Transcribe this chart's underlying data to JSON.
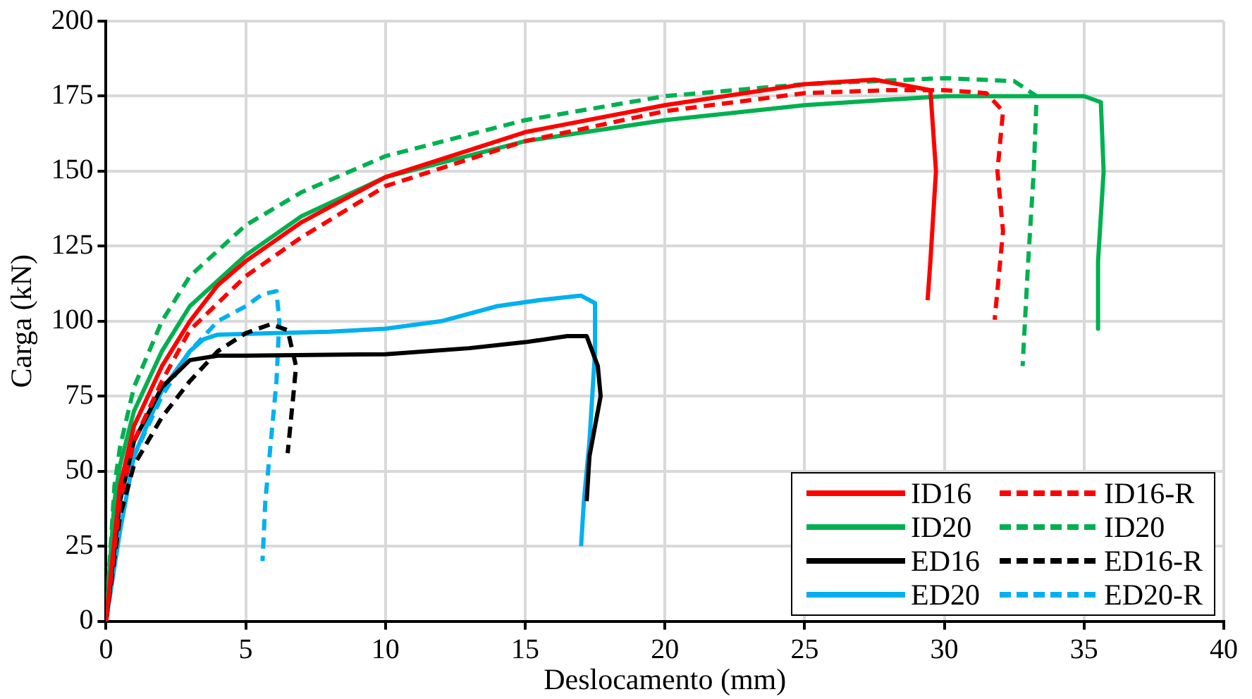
{
  "chart_data": {
    "type": "line",
    "xlabel": "Deslocamento (mm)",
    "ylabel": "Carga (kN)",
    "xlim": [
      0,
      40
    ],
    "xticks": [
      0,
      5,
      10,
      15,
      20,
      25,
      30,
      35,
      40
    ],
    "ylim": [
      0,
      200
    ],
    "yticks": [
      0,
      25,
      50,
      75,
      100,
      125,
      150,
      175,
      200
    ],
    "grid": true,
    "legend": "bottom right",
    "marker": "none",
    "series": [
      {
        "name": "ID16",
        "color": "#ff0000",
        "line_style": "solid",
        "x": [
          0,
          0.5,
          1,
          2,
          3,
          4,
          5,
          7,
          10,
          15,
          20,
          25,
          27.5,
          29.5,
          29.7,
          29.5,
          29.4
        ],
        "values": [
          0,
          45,
          65,
          85,
          100,
          112,
          120,
          133,
          148,
          163,
          172,
          179,
          180.5,
          177,
          150,
          120,
          107
        ]
      },
      {
        "name": "ID16-R",
        "color": "#ff0000",
        "line_style": "dashed",
        "x": [
          0,
          0.5,
          1,
          2,
          3,
          5,
          7,
          10,
          15,
          20,
          25,
          28,
          30,
          31.5,
          32.1,
          31.9,
          32.1,
          31.8
        ],
        "values": [
          0,
          40,
          60,
          80,
          97,
          115,
          128,
          145,
          160,
          170,
          176,
          177,
          177,
          176,
          170,
          150,
          130,
          100.5
        ]
      },
      {
        "name": "ID20",
        "color": "#00b050",
        "line_style": "solid",
        "x": [
          0,
          0.3,
          0.5,
          1,
          2,
          3,
          5,
          7,
          10,
          15,
          20,
          25,
          30,
          35,
          35.6,
          35.7,
          35.5,
          35.5
        ],
        "values": [
          0,
          40,
          52,
          70,
          90,
          105,
          122,
          135,
          148,
          160,
          167,
          172,
          175,
          175,
          173,
          150,
          120,
          97.5
        ]
      },
      {
        "name": "ID20",
        "color": "#00b050",
        "line_style": "dashed",
        "x": [
          0,
          0.3,
          0.5,
          1,
          2,
          3,
          5,
          7,
          10,
          15,
          20,
          25,
          30,
          32.5,
          33.3,
          33.2,
          33,
          32.8
        ],
        "values": [
          0,
          45,
          58,
          78,
          100,
          115,
          132,
          143,
          155,
          167,
          175,
          179,
          181,
          180,
          175,
          150,
          120,
          85
        ]
      },
      {
        "name": "ED16",
        "color": "#000000",
        "line_style": "solid",
        "x": [
          0,
          0.5,
          1,
          2,
          3,
          4,
          5,
          10,
          13,
          15,
          16.5,
          17.2,
          17.6,
          17.7,
          17.3,
          17.2
        ],
        "values": [
          0,
          40,
          60,
          78,
          87,
          88.5,
          88.5,
          89,
          91,
          93,
          95,
          95,
          85,
          75,
          55,
          40
        ]
      },
      {
        "name": "ED16-R",
        "color": "#000000",
        "line_style": "dashed",
        "x": [
          0,
          0.5,
          1,
          2,
          3,
          4,
          5,
          5.9,
          6.5,
          6.8,
          6.7,
          6.5
        ],
        "values": [
          0,
          35,
          52,
          68,
          80,
          90,
          96,
          99,
          97,
          85,
          75,
          56
        ]
      },
      {
        "name": "ED20",
        "color": "#00b0f0",
        "line_style": "solid",
        "x": [
          0,
          0.5,
          1,
          2,
          3,
          3.5,
          4,
          6,
          8,
          10,
          12,
          14,
          15.5,
          17,
          17.5,
          17.5,
          17.3,
          17.1,
          17
        ],
        "values": [
          0,
          30,
          55,
          77,
          90,
          94,
          95.5,
          96,
          96.5,
          97.5,
          100,
          105,
          107,
          108.5,
          106,
          90,
          60,
          40,
          25
        ]
      },
      {
        "name": "ED20-R",
        "color": "#00b0f0",
        "line_style": "dashed",
        "x": [
          0,
          0.5,
          1,
          2,
          3,
          4,
          5,
          5.6,
          6.1,
          6.2,
          6.1,
          5.9,
          5.7,
          5.6
        ],
        "values": [
          0,
          35,
          55,
          75,
          90,
          100,
          105,
          109,
          110,
          100,
          80,
          60,
          40,
          20
        ]
      }
    ]
  }
}
